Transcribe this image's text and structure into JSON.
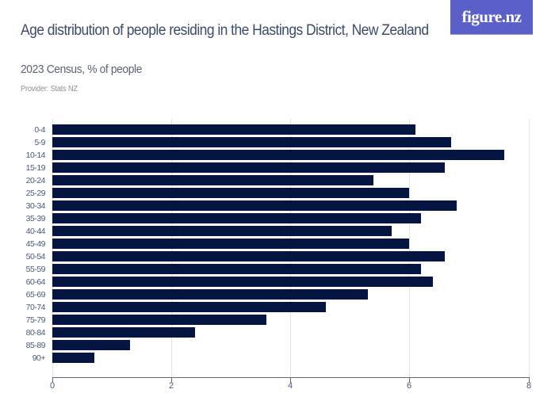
{
  "header": {
    "title": "Age distribution of people residing in the Hastings District, New Zealand",
    "subtitle": "2023 Census, % of people",
    "provider": "Provider: Stats NZ",
    "logo_text": "figure.nz"
  },
  "colors": {
    "bar": "#051542",
    "logo_bg": "#5a60c8",
    "title": "#3c4a6b"
  },
  "chart_data": {
    "type": "bar",
    "orientation": "horizontal",
    "title": "Age distribution of people residing in the Hastings District, New Zealand",
    "subtitle": "2023 Census, % of people",
    "xlabel": "",
    "ylabel": "",
    "categories": [
      "0-4",
      "5-9",
      "10-14",
      "15-19",
      "20-24",
      "25-29",
      "30-34",
      "35-39",
      "40-44",
      "45-49",
      "50-54",
      "55-59",
      "60-64",
      "65-69",
      "70-74",
      "75-79",
      "80-84",
      "85-89",
      "90+"
    ],
    "values": [
      6.1,
      6.7,
      7.6,
      6.6,
      5.4,
      6.0,
      6.8,
      6.2,
      5.7,
      6.0,
      6.6,
      6.2,
      6.4,
      5.3,
      4.6,
      3.6,
      2.4,
      1.3,
      0.7
    ],
    "xlim": [
      0,
      8
    ],
    "xticks": [
      "0",
      "2",
      "4",
      "6",
      "8"
    ],
    "grid": true,
    "legend": null
  }
}
